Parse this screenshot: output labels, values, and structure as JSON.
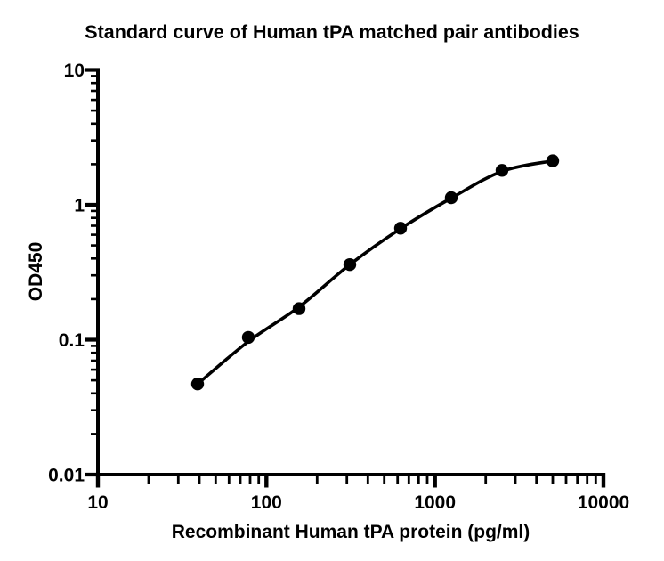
{
  "figure": {
    "colors": {
      "foreground": "#000000",
      "background": "#ffffff"
    }
  },
  "chart_data": {
    "type": "scatter",
    "subtype": "standard-curve-with-fit",
    "title": "Standard curve of Human tPA matched pair antibodies",
    "xlabel": "Recombinant Human tPA protein (pg/ml)",
    "ylabel": "OD450",
    "x_scale": "log10",
    "y_scale": "log10",
    "xlim": [
      10,
      10000
    ],
    "ylim": [
      0.01,
      10
    ],
    "grid": false,
    "legend": false,
    "x_tick_values": [
      10,
      100,
      1000,
      10000
    ],
    "x_tick_labels": [
      "10",
      "100",
      "1000",
      "10000"
    ],
    "y_tick_values": [
      10,
      1,
      0.1,
      0.01
    ],
    "y_tick_labels": [
      "10",
      "1",
      "0.1",
      "0.01"
    ],
    "minor_ticks": "log-decade 2-9, outward",
    "series": [
      {
        "marker": "filled-black-circle",
        "x": [
          39.06,
          78.13,
          156.25,
          312.5,
          625,
          1250,
          2500,
          5000
        ],
        "y": [
          0.047,
          0.104,
          0.17,
          0.36,
          0.67,
          1.13,
          1.8,
          2.12
        ]
      }
    ],
    "fit_curve": {
      "kind": "sigmoidal 4PL fit",
      "x": [
        39.06,
        78.13,
        156.25,
        312.5,
        625,
        1250,
        2500,
        5000
      ],
      "y": [
        0.047,
        0.097,
        0.175,
        0.36,
        0.665,
        1.12,
        1.77,
        2.12
      ]
    }
  }
}
